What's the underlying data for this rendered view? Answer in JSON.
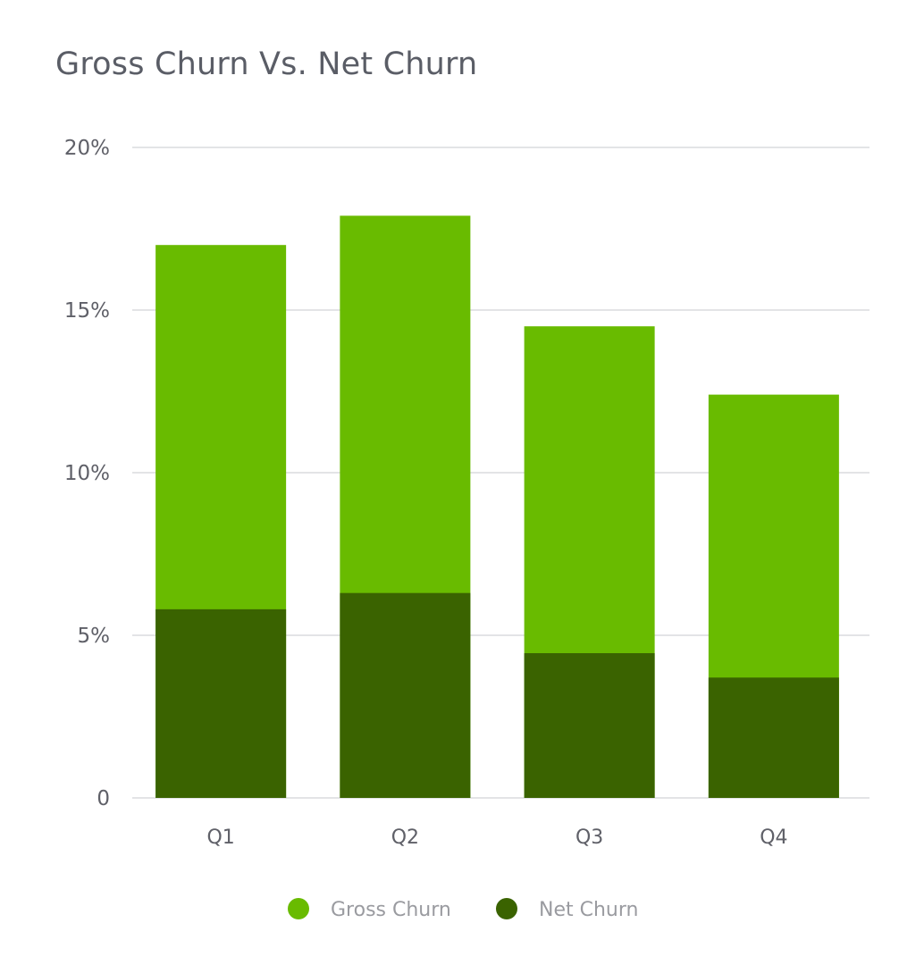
{
  "chart_data": {
    "type": "bar",
    "stacked": false,
    "overlay": true,
    "title": "Gross Churn Vs. Net Churn",
    "xlabel": "",
    "ylabel": "",
    "categories": [
      "Q1",
      "Q2",
      "Q3",
      "Q4"
    ],
    "y_ticks": [
      "0",
      "5%",
      "10%",
      "15%",
      "20%"
    ],
    "ylim": [
      0,
      20
    ],
    "grid": true,
    "legend_position": "bottom",
    "series": [
      {
        "name": "Gross Churn",
        "color": "#69bb00",
        "values": [
          17.0,
          17.9,
          14.5,
          12.4
        ]
      },
      {
        "name": "Net Churn",
        "color": "#3a6300",
        "values": [
          5.8,
          6.3,
          4.45,
          3.7
        ]
      }
    ]
  }
}
